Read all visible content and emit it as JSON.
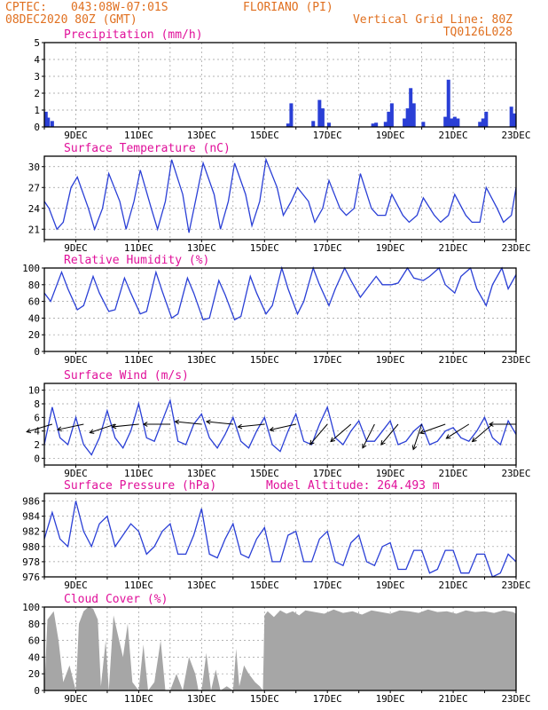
{
  "header": {
    "line1_source": "CPTEC:",
    "line1_coords": "043:08W-07:01S",
    "line1_location": "FLORIANO (PI)",
    "line2_date": "08DEC2020 80Z (GMT)",
    "line2_grid": "Vertical Grid Line: 80Z",
    "line2_code": "TQ0126L028"
  },
  "x_axis": {
    "start_day": 8,
    "end_day": 23,
    "tick_labels": [
      "9DEC",
      "11DEC",
      "13DEC",
      "15DEC",
      "17DEC",
      "19DEC",
      "21DEC",
      "23DEC"
    ],
    "tick_positions_days": [
      9,
      11,
      13,
      15,
      17,
      19,
      21,
      23
    ]
  },
  "model_altitude": "Model Altitude: 264.493 m",
  "chart_data": [
    {
      "id": "precip",
      "type": "bar",
      "title": "Precipitation (mm/h)",
      "ylim": [
        0,
        5
      ],
      "yticks": [
        0,
        1,
        2,
        3,
        4,
        5
      ],
      "color": "#2a3fd6",
      "x": [
        8.05,
        8.12,
        8.25,
        15.75,
        15.85,
        16.55,
        16.75,
        16.85,
        17.05,
        18.45,
        18.55,
        18.85,
        18.95,
        19.05,
        19.45,
        19.55,
        19.65,
        19.75,
        20.05,
        20.75,
        20.85,
        20.95,
        21.05,
        21.15,
        21.85,
        21.95,
        22.05,
        22.85,
        22.95
      ],
      "values": [
        0.9,
        0.55,
        0.35,
        0.2,
        1.4,
        0.35,
        1.6,
        1.1,
        0.25,
        0.2,
        0.25,
        0.3,
        0.9,
        1.4,
        0.5,
        1.1,
        2.3,
        1.4,
        0.3,
        0.6,
        2.8,
        0.5,
        0.6,
        0.5,
        0.3,
        0.5,
        0.9,
        1.2,
        0.8
      ]
    },
    {
      "id": "temp",
      "type": "line",
      "title": "Surface Temperature (nC)",
      "ylim": [
        19.5,
        31.5
      ],
      "yticks": [
        21,
        24,
        27,
        30
      ],
      "color": "#2a3fd6",
      "x": [
        8.0,
        8.15,
        8.4,
        8.6,
        8.85,
        9.05,
        9.4,
        9.6,
        9.85,
        10.05,
        10.4,
        10.6,
        10.85,
        11.05,
        11.4,
        11.6,
        11.85,
        12.05,
        12.4,
        12.6,
        12.85,
        13.05,
        13.4,
        13.6,
        13.85,
        14.05,
        14.4,
        14.6,
        14.85,
        15.05,
        15.4,
        15.6,
        15.85,
        16.05,
        16.4,
        16.6,
        16.85,
        17.05,
        17.4,
        17.6,
        17.85,
        18.05,
        18.4,
        18.6,
        18.85,
        19.05,
        19.4,
        19.6,
        19.85,
        20.05,
        20.4,
        20.6,
        20.85,
        21.05,
        21.4,
        21.6,
        21.85,
        22.05,
        22.4,
        22.6,
        22.85,
        23.0
      ],
      "values": [
        25,
        24,
        21,
        22,
        27,
        28.5,
        24,
        21,
        24,
        29,
        25,
        21,
        25,
        29.5,
        24,
        21,
        25,
        31,
        26,
        20.5,
        26,
        30.5,
        26,
        21,
        25,
        30.5,
        26,
        21.5,
        25,
        31,
        27,
        23,
        25,
        27,
        25,
        22,
        24,
        28,
        24,
        23,
        24,
        29,
        24,
        23,
        23,
        26,
        23,
        22,
        23,
        25.5,
        23,
        22,
        23,
        26,
        23,
        22,
        22,
        27,
        24,
        22,
        23,
        27
      ]
    },
    {
      "id": "rh",
      "type": "line",
      "title": "Relative Humidity (%)",
      "ylim": [
        0,
        100
      ],
      "yticks": [
        0,
        20,
        40,
        60,
        80,
        100
      ],
      "color": "#2a3fd6",
      "x": [
        8.0,
        8.2,
        8.55,
        8.75,
        9.05,
        9.25,
        9.55,
        9.75,
        10.05,
        10.25,
        10.55,
        10.75,
        11.05,
        11.25,
        11.55,
        11.75,
        12.05,
        12.25,
        12.55,
        12.75,
        13.05,
        13.25,
        13.55,
        13.75,
        14.05,
        14.25,
        14.55,
        14.75,
        15.05,
        15.25,
        15.55,
        15.75,
        16.05,
        16.25,
        16.55,
        16.75,
        17.05,
        17.25,
        17.55,
        17.75,
        18.05,
        18.25,
        18.55,
        18.75,
        19.05,
        19.25,
        19.55,
        19.75,
        20.05,
        20.25,
        20.55,
        20.75,
        21.05,
        21.25,
        21.55,
        21.75,
        22.05,
        22.25,
        22.55,
        22.75,
        23.0
      ],
      "values": [
        70,
        60,
        95,
        75,
        50,
        55,
        90,
        70,
        48,
        50,
        88,
        70,
        45,
        48,
        95,
        72,
        40,
        45,
        88,
        70,
        38,
        40,
        85,
        68,
        38,
        42,
        90,
        70,
        45,
        55,
        100,
        75,
        45,
        60,
        100,
        80,
        55,
        75,
        100,
        85,
        65,
        75,
        90,
        80,
        80,
        82,
        100,
        88,
        85,
        90,
        100,
        80,
        70,
        90,
        100,
        75,
        55,
        80,
        100,
        75,
        92
      ]
    },
    {
      "id": "wind",
      "type": "line",
      "title": "Surface Wind (m/s)",
      "ylim": [
        -1,
        11
      ],
      "yticks": [
        0,
        2,
        4,
        6,
        8,
        10
      ],
      "color": "#2a3fd6",
      "x": [
        8.0,
        8.25,
        8.5,
        8.75,
        9.0,
        9.25,
        9.5,
        9.75,
        10.0,
        10.25,
        10.5,
        10.75,
        11.0,
        11.25,
        11.5,
        11.75,
        12.0,
        12.25,
        12.5,
        12.75,
        13.0,
        13.25,
        13.5,
        13.75,
        14.0,
        14.25,
        14.5,
        14.75,
        15.0,
        15.25,
        15.5,
        15.75,
        16.0,
        16.25,
        16.5,
        16.75,
        17.0,
        17.25,
        17.5,
        17.75,
        18.0,
        18.25,
        18.5,
        18.75,
        19.0,
        19.25,
        19.5,
        19.75,
        20.0,
        20.25,
        20.5,
        20.75,
        21.0,
        21.25,
        21.5,
        21.75,
        22.0,
        22.25,
        22.5,
        22.75,
        23.0
      ],
      "values": [
        2,
        7.5,
        3,
        2,
        6,
        2,
        0.5,
        3,
        7,
        3,
        1.5,
        4,
        8,
        3,
        2.5,
        5.5,
        8.5,
        2.5,
        2,
        5,
        6.5,
        3,
        1.5,
        3.5,
        6,
        2.5,
        1.5,
        4,
        6,
        2,
        1,
        4,
        6.5,
        2.5,
        2,
        5,
        7.5,
        3,
        2,
        4,
        5.5,
        2.5,
        2.5,
        4,
        5.5,
        2,
        2.5,
        4,
        5,
        2,
        2.5,
        4,
        4.5,
        3,
        2.5,
        4,
        6,
        3,
        2,
        5.5,
        3.5
      ],
      "arrows": {
        "days": [
          8.25,
          9.25,
          10.25,
          11.0,
          12.0,
          13.0,
          14.0,
          15.0,
          16.0,
          17.0,
          17.75,
          18.5,
          19.25,
          20.0,
          20.75,
          21.5,
          22.25,
          23.0
        ],
        "dx": [
          -1,
          -0.95,
          -0.9,
          -1,
          -1,
          -1,
          -1,
          -1,
          -0.9,
          -0.6,
          -0.7,
          -0.4,
          -0.5,
          -0.3,
          -0.85,
          -0.8,
          -0.7,
          -1
        ],
        "dy": [
          -0.3,
          -0.2,
          -0.3,
          -0.1,
          0,
          0.1,
          0.1,
          -0.1,
          -0.2,
          -0.7,
          -0.6,
          -0.8,
          -0.6,
          -0.9,
          -0.3,
          -0.5,
          -0.6,
          0
        ]
      }
    },
    {
      "id": "pressure",
      "type": "line",
      "title": "Surface Pressure (hPa)",
      "ylim": [
        976,
        987
      ],
      "yticks": [
        976,
        978,
        980,
        982,
        984,
        986
      ],
      "color": "#2a3fd6",
      "x": [
        8.0,
        8.25,
        8.5,
        8.75,
        9.0,
        9.25,
        9.5,
        9.75,
        10.0,
        10.25,
        10.5,
        10.75,
        11.0,
        11.25,
        11.5,
        11.75,
        12.0,
        12.25,
        12.5,
        12.75,
        13.0,
        13.25,
        13.5,
        13.75,
        14.0,
        14.25,
        14.5,
        14.75,
        15.0,
        15.25,
        15.5,
        15.75,
        16.0,
        16.25,
        16.5,
        16.75,
        17.0,
        17.25,
        17.5,
        17.75,
        18.0,
        18.25,
        18.5,
        18.75,
        19.0,
        19.25,
        19.5,
        19.75,
        20.0,
        20.25,
        20.5,
        20.75,
        21.0,
        21.25,
        21.5,
        21.75,
        22.0,
        22.25,
        22.5,
        22.75,
        23.0
      ],
      "values": [
        981,
        984.5,
        981,
        980,
        986,
        982,
        980,
        983,
        984,
        980,
        981.5,
        983,
        982,
        979,
        980,
        982,
        983,
        979,
        979,
        981.5,
        985,
        979,
        978.5,
        981,
        983,
        979,
        978.5,
        981,
        982.5,
        978,
        978,
        981.5,
        982,
        978,
        978,
        981,
        982,
        978,
        977.5,
        980.5,
        981.5,
        978,
        977.5,
        980,
        980.5,
        977,
        977,
        979.5,
        979.5,
        976.5,
        977,
        979.5,
        979.5,
        976.5,
        976.5,
        979,
        979,
        976,
        976.5,
        979,
        978
      ]
    },
    {
      "id": "cloud",
      "type": "area",
      "title": "Cloud Cover (%)",
      "ylim": [
        0,
        100
      ],
      "yticks": [
        0,
        20,
        40,
        60,
        80,
        100
      ],
      "color": "#a6a6a6",
      "x": [
        8.0,
        8.1,
        8.3,
        8.45,
        8.6,
        8.8,
        9.0,
        9.1,
        9.25,
        9.4,
        9.55,
        9.7,
        9.8,
        9.95,
        10.05,
        10.2,
        10.35,
        10.5,
        10.65,
        10.8,
        11.0,
        11.15,
        11.3,
        11.5,
        11.7,
        11.85,
        12.0,
        12.2,
        12.4,
        12.6,
        12.8,
        12.9,
        13.0,
        13.15,
        13.3,
        13.45,
        13.6,
        13.8,
        14.0,
        14.1,
        14.2,
        14.35,
        14.5,
        14.7,
        14.85,
        14.95,
        15.0,
        15.1,
        15.3,
        15.5,
        15.7,
        15.9,
        16.1,
        16.3,
        16.6,
        16.9,
        17.2,
        17.5,
        17.8,
        18.1,
        18.4,
        18.7,
        19.0,
        19.3,
        19.6,
        19.9,
        20.2,
        20.5,
        20.8,
        21.1,
        21.4,
        21.7,
        22.0,
        22.3,
        22.6,
        22.9,
        23.0
      ],
      "values": [
        0,
        85,
        95,
        60,
        10,
        30,
        0,
        80,
        95,
        100,
        98,
        85,
        5,
        60,
        0,
        90,
        65,
        40,
        80,
        10,
        0,
        55,
        0,
        10,
        60,
        0,
        0,
        20,
        0,
        40,
        20,
        0,
        0,
        45,
        0,
        25,
        0,
        5,
        0,
        50,
        5,
        30,
        20,
        10,
        5,
        0,
        90,
        95,
        88,
        96,
        92,
        95,
        90,
        96,
        94,
        92,
        97,
        93,
        95,
        91,
        96,
        94,
        92,
        96,
        95,
        93,
        97,
        94,
        95,
        92,
        96,
        94,
        95,
        93,
        96,
        94,
        92
      ]
    }
  ]
}
